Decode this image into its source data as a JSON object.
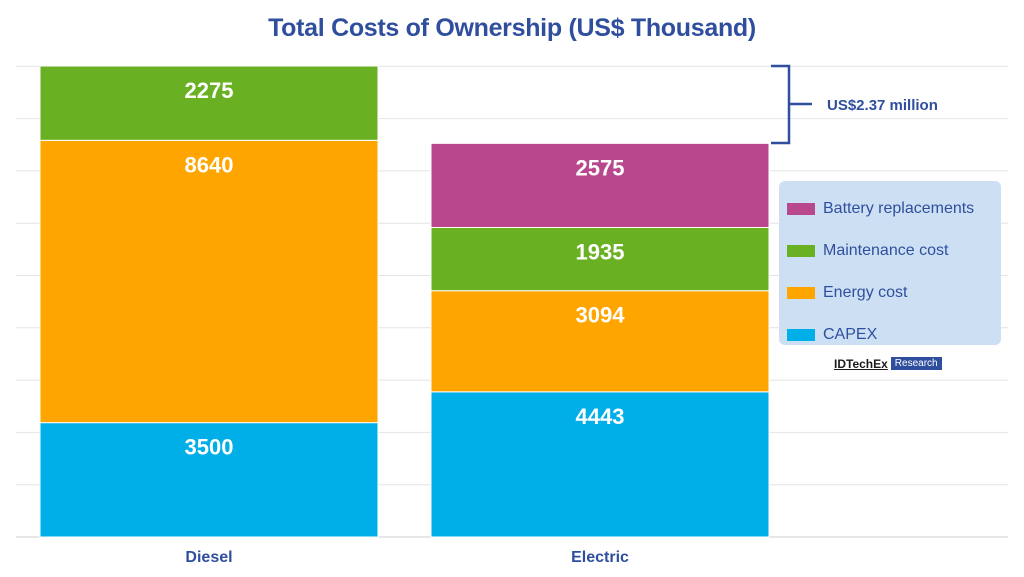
{
  "chart_data": {
    "type": "bar",
    "stacked": true,
    "title": "Total Costs of Ownership (US$ Thousand)",
    "categories": [
      "Diesel",
      "Electric"
    ],
    "series": [
      {
        "name": "CAPEX",
        "values": [
          3500,
          4443
        ],
        "color": "#00aee8"
      },
      {
        "name": "Energy cost",
        "values": [
          8640,
          3094
        ],
        "color": "#ffa500"
      },
      {
        "name": "Maintenance cost",
        "values": [
          2275,
          1935
        ],
        "color": "#6ab023"
      },
      {
        "name": "Battery replacements",
        "values": [
          0,
          2575
        ],
        "color": "#b8478e"
      }
    ],
    "legend_order": [
      "Battery replacements",
      "Maintenance cost",
      "Energy cost",
      "CAPEX"
    ],
    "ylim": [
      0,
      14415
    ],
    "grid": true,
    "legend_position": "right",
    "annotation": "US$2.37 million"
  },
  "logo": {
    "brand": "IDTechEx",
    "tag": "Research"
  }
}
